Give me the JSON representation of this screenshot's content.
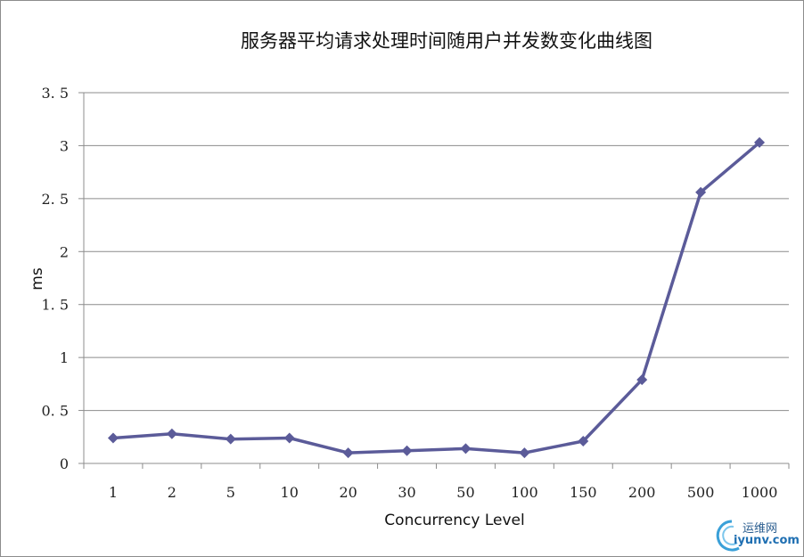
{
  "chart_data": {
    "type": "line",
    "title": "服务器平均请求处理时间随用户并发数变化曲线图",
    "xlabel": "Concurrency Level",
    "ylabel": "ms",
    "categories": [
      "1",
      "2",
      "5",
      "10",
      "20",
      "30",
      "50",
      "100",
      "150",
      "200",
      "500",
      "1000"
    ],
    "series": [
      {
        "values": [
          0.24,
          0.28,
          0.23,
          0.24,
          0.1,
          0.12,
          0.14,
          0.1,
          0.21,
          0.79,
          2.56,
          3.03
        ]
      }
    ],
    "yticks": [
      "0",
      "0.5",
      "1",
      "1.5",
      "2",
      "2.5",
      "3",
      "3.5"
    ],
    "ylim": [
      0,
      3.5
    ],
    "grid": true,
    "legend": "none",
    "colors": {
      "series": "#5b5b99",
      "grid": "#8c8c8c"
    }
  },
  "watermark": {
    "text_cn": "运维网",
    "text_en": "iyunv.com",
    "color": "#1f6fb2"
  }
}
